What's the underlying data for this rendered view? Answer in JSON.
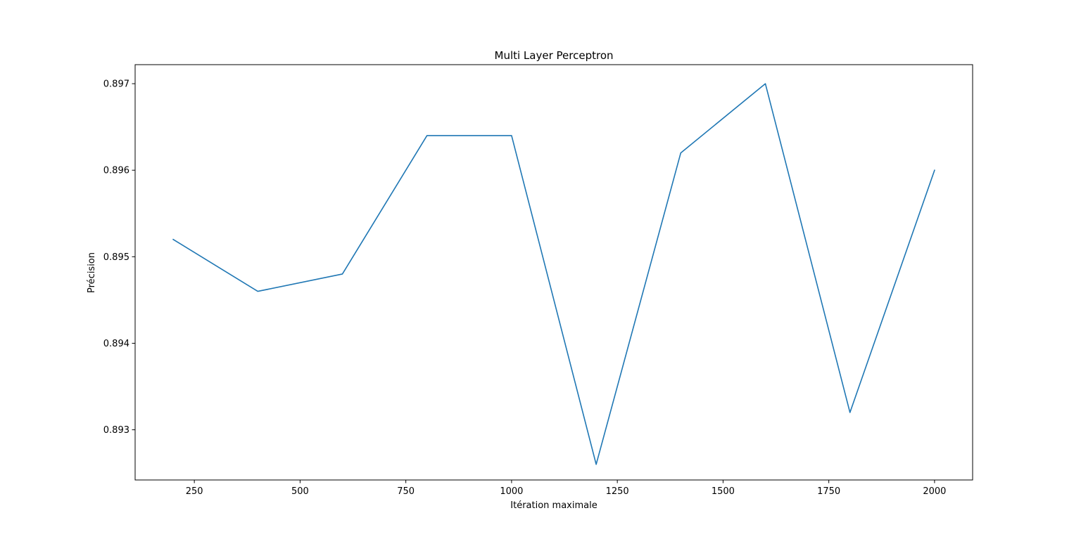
{
  "chart_data": {
    "type": "line",
    "title": "Multi Layer Perceptron",
    "xlabel": "Itération maximale",
    "ylabel": "Précision",
    "xlim": [
      110,
      2090
    ],
    "ylim": [
      0.89242,
      0.89722
    ],
    "grid": false,
    "x_ticks": [
      250,
      500,
      750,
      1000,
      1250,
      1500,
      1750,
      2000
    ],
    "y_ticks": [
      0.893,
      0.894,
      0.895,
      0.896,
      0.897
    ],
    "x_tick_labels": [
      "250",
      "500",
      "750",
      "1000",
      "1250",
      "1500",
      "1750",
      "2000"
    ],
    "y_tick_labels": [
      "0.893",
      "0.894",
      "0.895",
      "0.896",
      "0.897"
    ],
    "series": [
      {
        "color": "#1f77b4",
        "x": [
          200,
          400,
          600,
          800,
          1000,
          1200,
          1400,
          1600,
          1800,
          2000
        ],
        "y": [
          0.8952,
          0.8946,
          0.8948,
          0.8964,
          0.8964,
          0.8926,
          0.8962,
          0.897,
          0.8932,
          0.896
        ]
      }
    ]
  }
}
